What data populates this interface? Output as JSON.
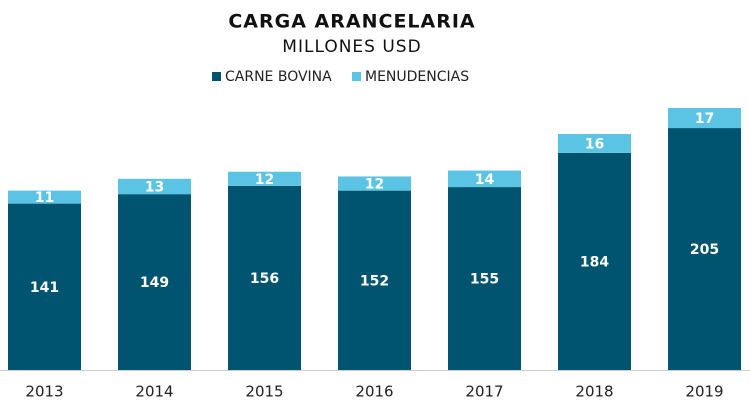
{
  "chart_data": {
    "type": "stacked-bar",
    "title": "CARGA ARANCELARIA",
    "subtitle": "MILLONES USD",
    "categories": [
      "2013",
      "2014",
      "2015",
      "2016",
      "2017",
      "2018",
      "2019"
    ],
    "series": [
      {
        "name": "CARNE BOVINA",
        "color": "#005470",
        "values": [
          141,
          149,
          156,
          152,
          155,
          184,
          205
        ]
      },
      {
        "name": "MENUDENCIAS",
        "color": "#5bc4e5",
        "values": [
          11,
          13,
          12,
          12,
          14,
          16,
          17
        ]
      }
    ]
  }
}
